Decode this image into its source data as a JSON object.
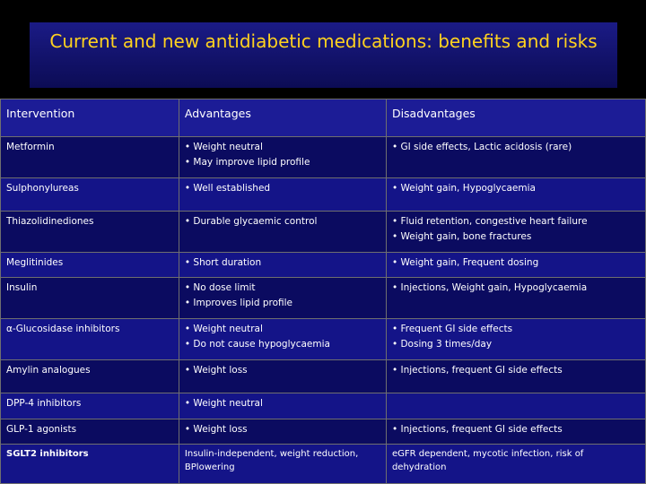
{
  "title": "Current and new antidiabetic medications: benefits and risks",
  "headers": [
    "Intervention",
    "Advantages",
    "Disadvantages"
  ],
  "rows": [
    {
      "intervention": "Metformin",
      "advantages": [
        "• Weight neutral",
        "• May improve lipid profile"
      ],
      "disadvantages": [
        "• GI side effects,  Lactic acidosis (rare)"
      ]
    },
    {
      "intervention": "Sulphonylureas",
      "advantages": [
        "• Well established"
      ],
      "disadvantages": [
        "• Weight gain,  Hypoglycaemia"
      ]
    },
    {
      "intervention": "Thiazolidinediones",
      "advantages": [
        "• Durable glycaemic control"
      ],
      "disadvantages": [
        "• Fluid retention, congestive heart failure",
        "• Weight gain, bone fractures"
      ]
    },
    {
      "intervention": "Meglitinides",
      "advantages": [
        "• Short duration"
      ],
      "disadvantages": [
        "• Weight gain,  Frequent dosing"
      ]
    },
    {
      "intervention": "Insulin",
      "advantages": [
        "• No dose limit",
        "• Improves lipid profile"
      ],
      "disadvantages": [
        "• Injections,  Weight gain,  Hypoglycaemia"
      ]
    },
    {
      "intervention": "α-Glucosidase inhibitors",
      "advantages": [
        "• Weight neutral",
        "• Do not cause hypoglycaemia"
      ],
      "disadvantages": [
        "• Frequent GI side effects",
        "• Dosing 3 times/day"
      ]
    },
    {
      "intervention": "Amylin analogues",
      "advantages": [
        "• Weight loss"
      ],
      "disadvantages": [
        "• Injections, frequent GI side effects"
      ]
    },
    {
      "intervention": "DPP-4 inhibitors",
      "advantages": [
        "• Weight neutral"
      ],
      "disadvantages": []
    },
    {
      "intervention": "GLP-1 agonists",
      "advantages": [
        "• Weight loss"
      ],
      "disadvantages": [
        "• Injections, frequent GI side effects"
      ]
    },
    {
      "intervention": "SGLT2 inhibitors",
      "advantages": [
        "Insulin-independent,  weight reduction, BPlowering"
      ],
      "disadvantages": [
        "eGFR dependent, mycotic infection, risk of dehydration"
      ]
    }
  ]
}
